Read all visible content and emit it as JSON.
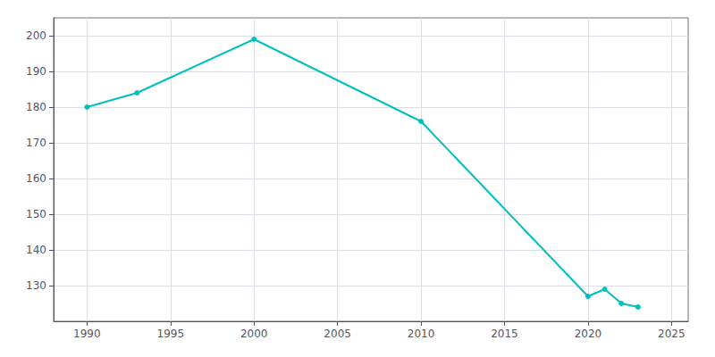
{
  "chart_data": {
    "type": "line",
    "x": [
      1990,
      1993,
      2000,
      2010,
      2020,
      2021,
      2022,
      2023
    ],
    "values": [
      180,
      184,
      199,
      176,
      127,
      129,
      125,
      124
    ],
    "color": "#00BFBF",
    "marker": "circle",
    "xlim": [
      1988,
      2026
    ],
    "ylim": [
      120,
      205
    ],
    "xticks": [
      1990,
      1995,
      2000,
      2005,
      2010,
      2015,
      2020,
      2025
    ],
    "yticks": [
      130,
      140,
      150,
      160,
      170,
      180,
      190,
      200
    ],
    "grid": true
  }
}
